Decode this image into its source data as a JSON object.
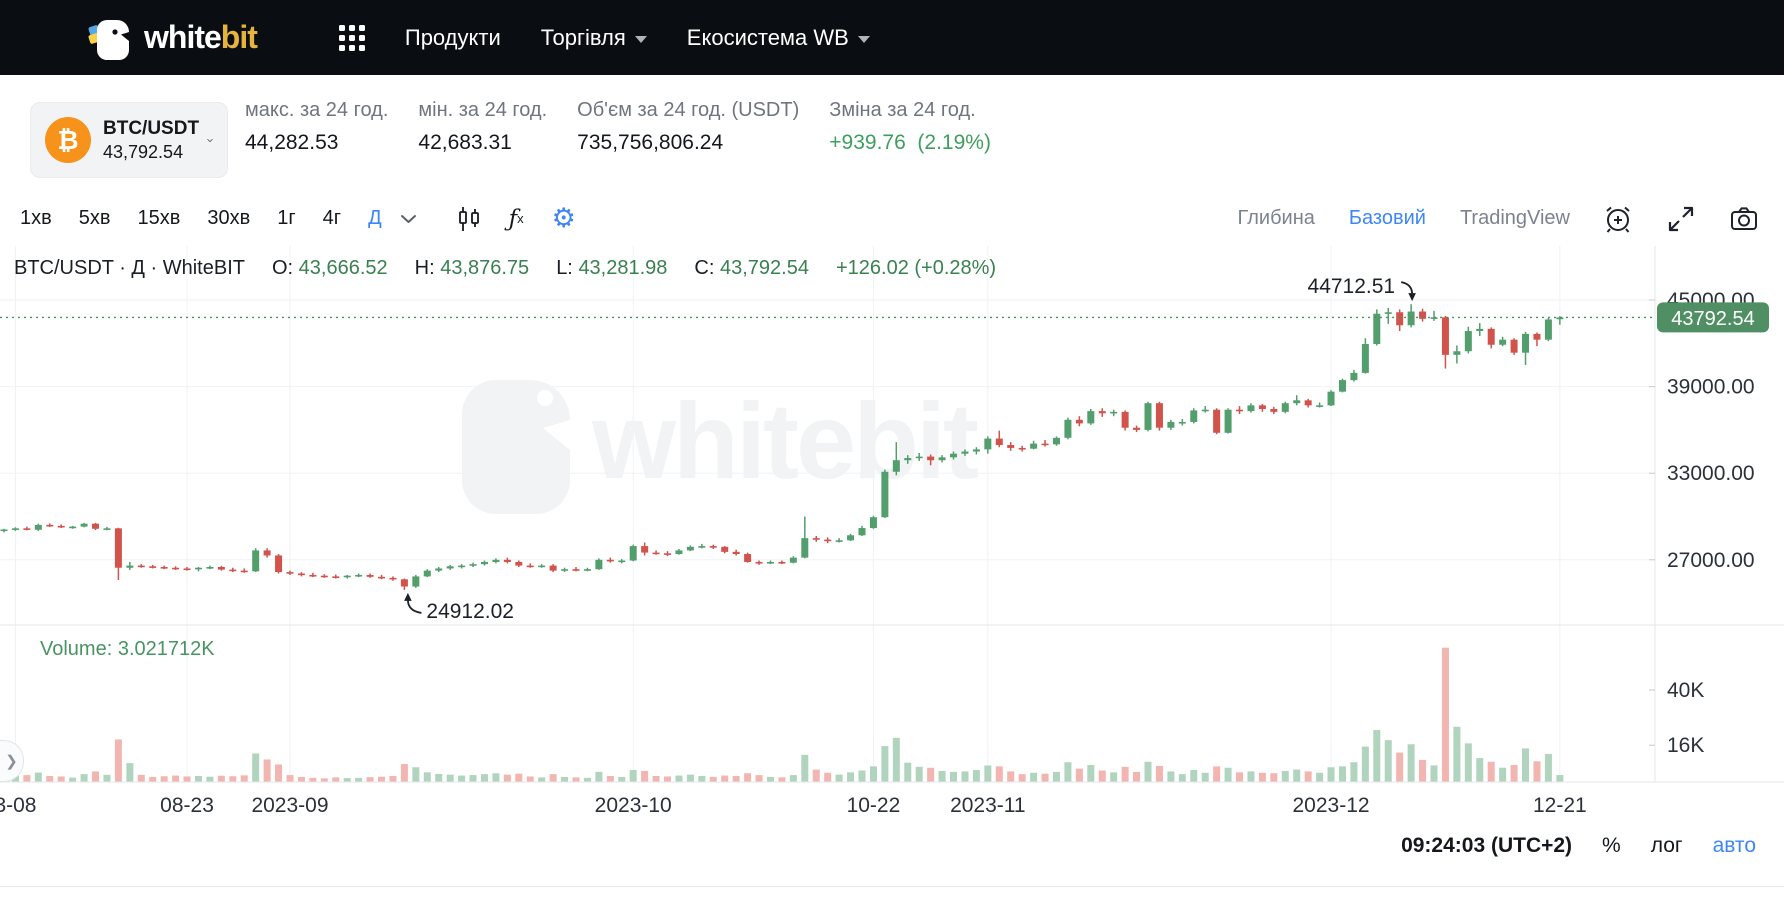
{
  "navbar": {
    "logo_white": "white",
    "logo_bit": "bit",
    "items": [
      {
        "label": "Продукти",
        "dropdown": false
      },
      {
        "label": "Торгівля",
        "dropdown": true
      },
      {
        "label": "Екосистема WB",
        "dropdown": true
      }
    ]
  },
  "ticker": {
    "pair": "BTC/USDT",
    "price": "43,792.54",
    "stats": [
      {
        "label": "макс. за 24 год.",
        "value": "44,282.53"
      },
      {
        "label": "мін. за 24 год.",
        "value": "42,683.31"
      },
      {
        "label": "Об'єм за 24 год. (USDT)",
        "value": "735,756,806.24"
      },
      {
        "label": "Зміна за 24 год.",
        "value": "+939.76  (2.19%)"
      }
    ]
  },
  "toolbar": {
    "timeframes": [
      "1хв",
      "5хв",
      "15хв",
      "30хв",
      "1г",
      "4г",
      "Д"
    ],
    "active_timeframe": "Д",
    "right_tabs": [
      "Глибина",
      "Базовий",
      "TradingView"
    ],
    "active_tab": "Базовий"
  },
  "legend": {
    "symbol": "BTC/USDT · Д · WhiteBIT",
    "o_label": "O:",
    "o": "43,666.52",
    "h_label": "H:",
    "h": "43,876.75",
    "l_label": "L:",
    "l": "43,281.98",
    "c_label": "C:",
    "c": "43,792.54",
    "change": "+126.02 (+0.28%)"
  },
  "statusbar": {
    "clock": "09:24:03 (UTC+2)",
    "percent": "%",
    "log": "лог",
    "auto": "авто"
  },
  "expander_glyph": "❯",
  "watermark": "whitebit",
  "colors": {
    "up": "#539e6d",
    "down": "#d2524c",
    "vol_up": "#b0d4bd",
    "vol_down": "#f2b5b0",
    "price_line": "#4f8f63",
    "badge": "#4f8f63",
    "grid": "#f0f2f4",
    "axis_text": "#2b313b",
    "annotation": "#1c2128",
    "border": "#e4e7ea",
    "accent_blue": "#3d87f5",
    "watermark": "#f2f3f5"
  },
  "chart_data": {
    "type": "candlestick",
    "symbol": "BTC/USDT",
    "interval": "Д",
    "exchange": "WhiteBIT",
    "volume_label": "Volume: 3.021712K",
    "last_price": 43792.54,
    "last_price_label": "43792.54",
    "high_annotation": {
      "text": "44712.51",
      "value": 44712.51
    },
    "low_annotation": {
      "text": "24912.02",
      "value": 24912.02
    },
    "price_axis_labels": [
      {
        "text": "45000.00",
        "value": 45000
      },
      {
        "text": "39000.00",
        "value": 39000
      },
      {
        "text": "33000.00",
        "value": 33000
      },
      {
        "text": "27000.00",
        "value": 27000
      }
    ],
    "volume_axis_labels": [
      {
        "text": "40K",
        "value": 40
      },
      {
        "text": "16K",
        "value": 16
      }
    ],
    "time_ticks": [
      {
        "label": "3-08",
        "index": 1
      },
      {
        "label": "08-23",
        "index": 16
      },
      {
        "label": "2023-09",
        "index": 25
      },
      {
        "label": "2023-10",
        "index": 55
      },
      {
        "label": "10-22",
        "index": 76
      },
      {
        "label": "2023-11",
        "index": 86
      },
      {
        "label": "2023-12",
        "index": 116
      },
      {
        "label": "12-21",
        "index": 136
      }
    ],
    "ohlc": {
      "open": 43666.52,
      "high": 43876.75,
      "low": 43281.98,
      "close": 43792.54,
      "change": "+126.02 (+0.28%)"
    },
    "candles": [
      [
        29050,
        29150,
        28900,
        29100,
        3.2
      ],
      [
        29100,
        29250,
        29000,
        29180,
        2.8
      ],
      [
        29180,
        29300,
        29050,
        29080,
        3.0
      ],
      [
        29080,
        29500,
        29000,
        29420,
        4.1
      ],
      [
        29420,
        29520,
        29280,
        29350,
        2.6
      ],
      [
        29350,
        29450,
        29200,
        29280,
        2.4
      ],
      [
        29280,
        29350,
        29150,
        29300,
        1.9
      ],
      [
        29300,
        29560,
        29250,
        29500,
        3.4
      ],
      [
        29500,
        29560,
        29060,
        29150,
        4.6
      ],
      [
        29150,
        29280,
        29050,
        29180,
        3.1
      ],
      [
        29180,
        29220,
        25600,
        26450,
        18.5
      ],
      [
        26450,
        26850,
        26300,
        26600,
        8.2
      ],
      [
        26600,
        26700,
        26450,
        26550,
        3.1
      ],
      [
        26550,
        26650,
        26400,
        26500,
        2.2
      ],
      [
        26500,
        26600,
        26350,
        26450,
        2.5
      ],
      [
        26450,
        26550,
        26300,
        26400,
        2.8
      ],
      [
        26400,
        26500,
        26250,
        26350,
        2.4
      ],
      [
        26350,
        26500,
        26200,
        26450,
        2.6
      ],
      [
        26450,
        26600,
        26350,
        26500,
        2.3
      ],
      [
        26500,
        26580,
        26250,
        26320,
        2.7
      ],
      [
        26320,
        26450,
        26150,
        26250,
        2.5
      ],
      [
        26250,
        26400,
        26100,
        26200,
        2.9
      ],
      [
        26200,
        27800,
        26150,
        27650,
        12.4
      ],
      [
        27650,
        27800,
        27150,
        27300,
        9.8
      ],
      [
        27300,
        27400,
        26050,
        26150,
        7.6
      ],
      [
        26150,
        26250,
        25950,
        26050,
        3.0
      ],
      [
        26050,
        26150,
        25850,
        25950,
        2.2
      ],
      [
        25950,
        26100,
        25800,
        25900,
        1.8
      ],
      [
        25900,
        26000,
        25750,
        25850,
        1.6
      ],
      [
        25850,
        25980,
        25700,
        25800,
        2.0
      ],
      [
        25800,
        25950,
        25700,
        25900,
        1.7
      ],
      [
        25900,
        26050,
        25800,
        25950,
        1.8
      ],
      [
        25950,
        26050,
        25750,
        25820,
        2.1
      ],
      [
        25820,
        25950,
        25650,
        25750,
        2.3
      ],
      [
        25750,
        25850,
        25550,
        25650,
        2.6
      ],
      [
        25650,
        25700,
        24912.02,
        25150,
        7.8
      ],
      [
        25150,
        25950,
        25050,
        25850,
        6.4
      ],
      [
        25850,
        26350,
        25800,
        26250,
        4.2
      ],
      [
        26250,
        26500,
        26150,
        26400,
        3.5
      ],
      [
        26400,
        26650,
        26300,
        26550,
        3.2
      ],
      [
        26550,
        26700,
        26400,
        26600,
        2.8
      ],
      [
        26600,
        26800,
        26500,
        26700,
        3.0
      ],
      [
        26700,
        26950,
        26600,
        26850,
        3.4
      ],
      [
        26850,
        27100,
        26750,
        27000,
        3.8
      ],
      [
        27000,
        27150,
        26750,
        26850,
        3.2
      ],
      [
        26850,
        26950,
        26500,
        26600,
        3.6
      ],
      [
        26600,
        26750,
        26450,
        26550,
        2.4
      ],
      [
        26550,
        26700,
        26450,
        26600,
        2.0
      ],
      [
        26600,
        26700,
        26150,
        26250,
        3.4
      ],
      [
        26250,
        26450,
        26150,
        26350,
        2.2
      ],
      [
        26350,
        26500,
        26200,
        26300,
        2.0
      ],
      [
        26300,
        26450,
        26200,
        26350,
        1.8
      ],
      [
        26350,
        27100,
        26300,
        27000,
        4.4
      ],
      [
        27000,
        27150,
        26800,
        26900,
        2.6
      ],
      [
        26900,
        27050,
        26750,
        26950,
        2.2
      ],
      [
        26950,
        28050,
        26900,
        27950,
        5.2
      ],
      [
        27950,
        28200,
        27300,
        27500,
        4.8
      ],
      [
        27500,
        27650,
        27350,
        27450,
        2.6
      ],
      [
        27450,
        27600,
        27250,
        27400,
        2.4
      ],
      [
        27400,
        27750,
        27350,
        27650,
        2.8
      ],
      [
        27650,
        28000,
        27600,
        27900,
        3.2
      ],
      [
        27900,
        28100,
        27800,
        27950,
        2.6
      ],
      [
        27950,
        28050,
        27750,
        27900,
        2.2
      ],
      [
        27900,
        27950,
        27450,
        27550,
        2.8
      ],
      [
        27550,
        27700,
        27300,
        27400,
        2.6
      ],
      [
        27400,
        27500,
        26800,
        26850,
        3.8
      ],
      [
        26850,
        26950,
        26650,
        26750,
        3.0
      ],
      [
        26750,
        26950,
        26700,
        26850,
        2.2
      ],
      [
        26850,
        26950,
        26700,
        26800,
        2.0
      ],
      [
        26800,
        27250,
        26750,
        27150,
        3.0
      ],
      [
        27150,
        30000,
        27100,
        28500,
        11.8
      ],
      [
        28500,
        28650,
        28250,
        28400,
        5.4
      ],
      [
        28400,
        28550,
        28150,
        28300,
        4.0
      ],
      [
        28300,
        28500,
        28200,
        28350,
        3.2
      ],
      [
        28350,
        28800,
        28300,
        28700,
        4.2
      ],
      [
        28700,
        29350,
        28650,
        29200,
        5.0
      ],
      [
        29200,
        30050,
        29150,
        29950,
        6.8
      ],
      [
        29950,
        33250,
        29900,
        33100,
        15.6
      ],
      [
        33100,
        35150,
        32850,
        33900,
        19.2
      ],
      [
        33900,
        34250,
        33650,
        34050,
        8.4
      ],
      [
        34050,
        34400,
        33850,
        34150,
        6.6
      ],
      [
        34150,
        34300,
        33550,
        33900,
        6.2
      ],
      [
        33900,
        34250,
        33750,
        34100,
        4.8
      ],
      [
        34100,
        34500,
        33950,
        34350,
        4.4
      ],
      [
        34350,
        34650,
        34200,
        34500,
        4.6
      ],
      [
        34500,
        34800,
        34300,
        34650,
        5.2
      ],
      [
        34650,
        35550,
        34350,
        35400,
        7.2
      ],
      [
        35400,
        35950,
        34800,
        34950,
        6.8
      ],
      [
        34950,
        35150,
        34550,
        34750,
        4.6
      ],
      [
        34750,
        34900,
        34500,
        34700,
        3.4
      ],
      [
        34700,
        35250,
        34650,
        35050,
        4.0
      ],
      [
        35050,
        35300,
        34850,
        35000,
        3.6
      ],
      [
        35000,
        35550,
        34900,
        35450,
        4.4
      ],
      [
        35450,
        36850,
        35350,
        36700,
        8.6
      ],
      [
        36700,
        36950,
        36250,
        36450,
        5.8
      ],
      [
        36450,
        37450,
        36350,
        37300,
        7.4
      ],
      [
        37300,
        37500,
        36900,
        37150,
        5.0
      ],
      [
        37150,
        37400,
        36950,
        37250,
        4.2
      ],
      [
        37250,
        37350,
        35950,
        36150,
        6.6
      ],
      [
        36150,
        36300,
        35850,
        36000,
        4.4
      ],
      [
        36000,
        37950,
        35900,
        37850,
        8.8
      ],
      [
        37850,
        37950,
        35950,
        36150,
        7.0
      ],
      [
        36150,
        36700,
        36000,
        36550,
        4.6
      ],
      [
        36550,
        36750,
        36300,
        36550,
        3.4
      ],
      [
        36550,
        37500,
        36450,
        37350,
        5.2
      ],
      [
        37350,
        37650,
        37200,
        37400,
        4.0
      ],
      [
        37400,
        37500,
        35700,
        35800,
        6.8
      ],
      [
        35800,
        37500,
        35750,
        37400,
        6.2
      ],
      [
        37400,
        37650,
        37100,
        37300,
        4.2
      ],
      [
        37300,
        37850,
        37200,
        37700,
        4.6
      ],
      [
        37700,
        37800,
        37250,
        37450,
        4.0
      ],
      [
        37450,
        37600,
        37100,
        37250,
        3.8
      ],
      [
        37250,
        37950,
        37150,
        37850,
        4.8
      ],
      [
        37850,
        38400,
        37700,
        38050,
        5.4
      ],
      [
        38050,
        38150,
        37550,
        37700,
        4.6
      ],
      [
        37700,
        37900,
        37550,
        37700,
        4.0
      ],
      [
        37700,
        38750,
        37650,
        38650,
        6.4
      ],
      [
        38650,
        39550,
        38600,
        39450,
        6.8
      ],
      [
        39450,
        40150,
        39350,
        39950,
        8.6
      ],
      [
        39950,
        42350,
        39900,
        41950,
        15.4
      ],
      [
        41950,
        44350,
        41850,
        44050,
        22.6
      ],
      [
        44050,
        44450,
        43350,
        44150,
        18.2
      ],
      [
        44150,
        44350,
        42850,
        43250,
        12.8
      ],
      [
        43250,
        44712.51,
        43100,
        44200,
        16.4
      ],
      [
        44200,
        44400,
        43500,
        43700,
        9.6
      ],
      [
        43700,
        44250,
        43550,
        43800,
        7.2
      ],
      [
        43800,
        43900,
        40250,
        41200,
        58.4
      ],
      [
        41200,
        41850,
        40600,
        41450,
        24.0
      ],
      [
        41450,
        43150,
        41300,
        42850,
        16.8
      ],
      [
        42850,
        43400,
        42500,
        43000,
        10.4
      ],
      [
        43000,
        43100,
        41650,
        41900,
        8.8
      ],
      [
        41900,
        42450,
        41800,
        42250,
        6.2
      ],
      [
        42250,
        42350,
        41200,
        41350,
        7.4
      ],
      [
        41350,
        42800,
        40500,
        42650,
        14.6
      ],
      [
        42650,
        42750,
        41800,
        42250,
        9.0
      ],
      [
        42250,
        43750,
        42150,
        43650,
        12.2
      ],
      [
        43666.52,
        43876.75,
        43281.98,
        43792.54,
        3.021712
      ]
    ]
  }
}
